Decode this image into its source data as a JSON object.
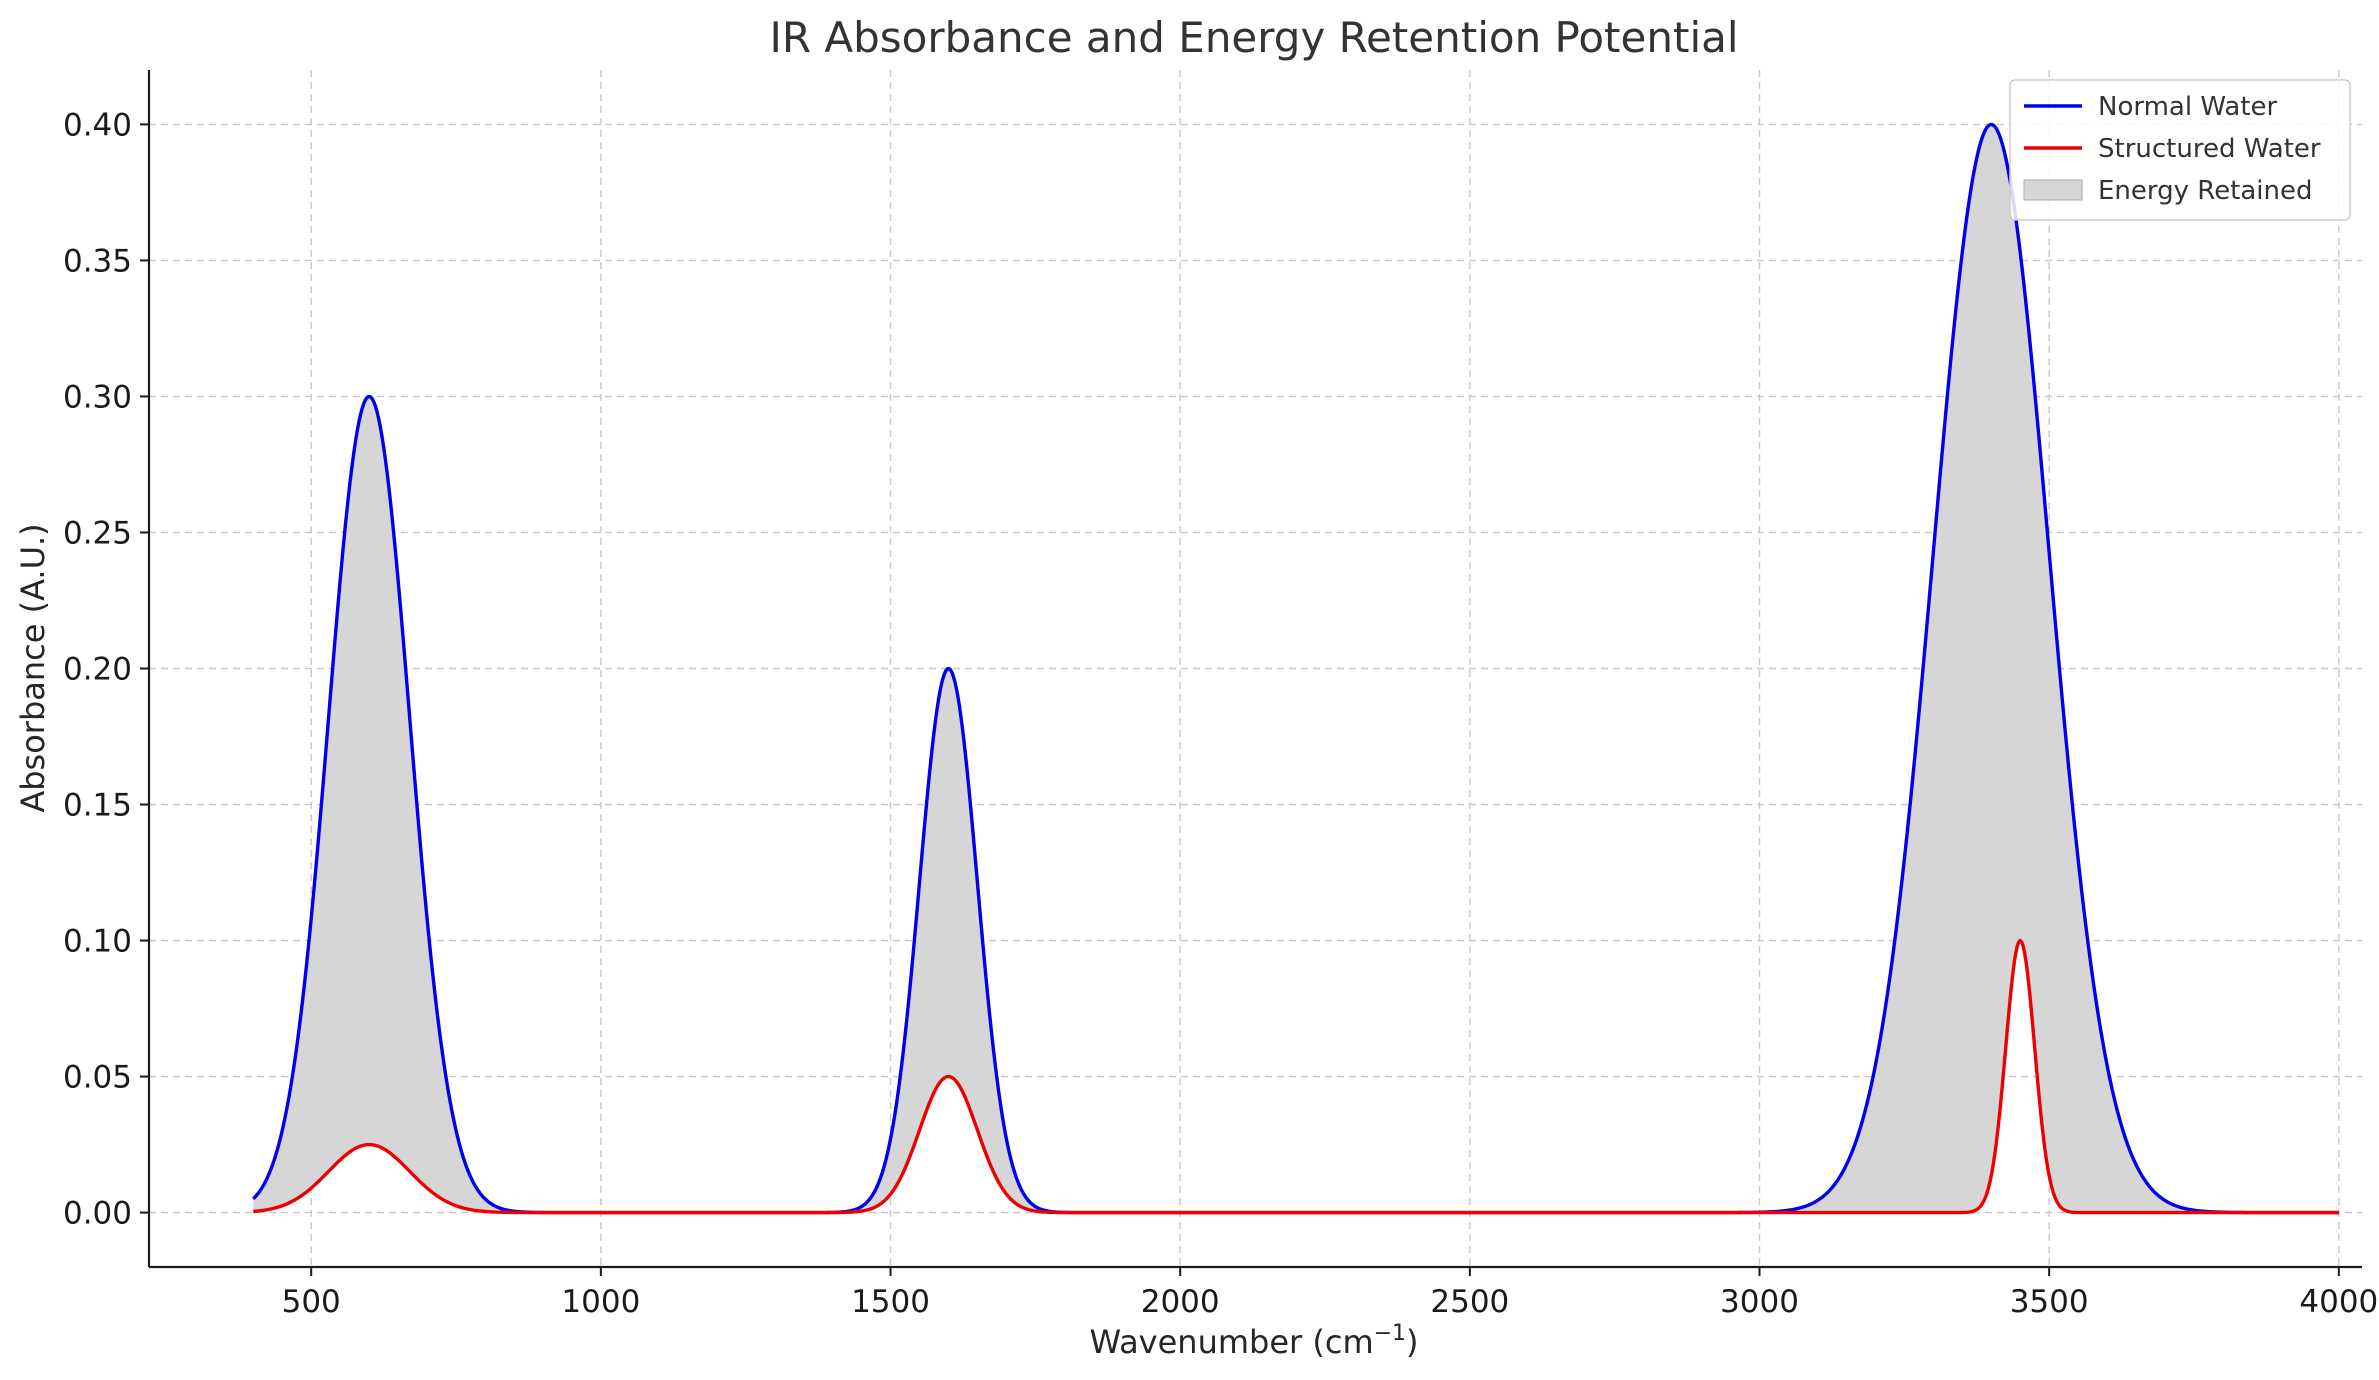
{
  "chart_data": {
    "type": "area",
    "title": "IR Absorbance and Energy Retention Potential",
    "xlabel": "Wavenumber (cm",
    "xlabel_sup": "−1",
    "xlabel_close": ")",
    "ylabel": "Absorbance (A.U.)",
    "xlim": [
      220,
      4040
    ],
    "ylim": [
      -0.02,
      0.42
    ],
    "x_ticks": [
      500,
      1000,
      1500,
      2000,
      2500,
      3000,
      3500,
      4000
    ],
    "x_tick_labels": [
      "500",
      "1000",
      "1500",
      "2000",
      "2500",
      "3000",
      "3500",
      "4000"
    ],
    "y_ticks": [
      0.0,
      0.05,
      0.1,
      0.15,
      0.2,
      0.25,
      0.3,
      0.35,
      0.4
    ],
    "y_tick_labels": [
      "0.00",
      "0.05",
      "0.10",
      "0.15",
      "0.20",
      "0.25",
      "0.30",
      "0.35",
      "0.40"
    ],
    "x_range": [
      400,
      4000
    ],
    "grid": true,
    "legend_position": "top-right",
    "series": [
      {
        "name": "Normal Water",
        "color": "#0000ee",
        "peaks": [
          {
            "center": 600,
            "height": 0.3,
            "width": 70
          },
          {
            "center": 1600,
            "height": 0.2,
            "width": 50
          },
          {
            "center": 3400,
            "height": 0.4,
            "width": 100
          }
        ]
      },
      {
        "name": "Structured Water",
        "color": "#ee0000",
        "peaks": [
          {
            "center": 600,
            "height": 0.025,
            "width": 70
          },
          {
            "center": 1600,
            "height": 0.05,
            "width": 50
          },
          {
            "center": 3450,
            "height": 0.1,
            "width": 25
          }
        ]
      }
    ],
    "fill": {
      "name": "Energy Retained",
      "between": [
        "Normal Water",
        "Structured Water"
      ],
      "color": "#d6d6d6"
    }
  }
}
